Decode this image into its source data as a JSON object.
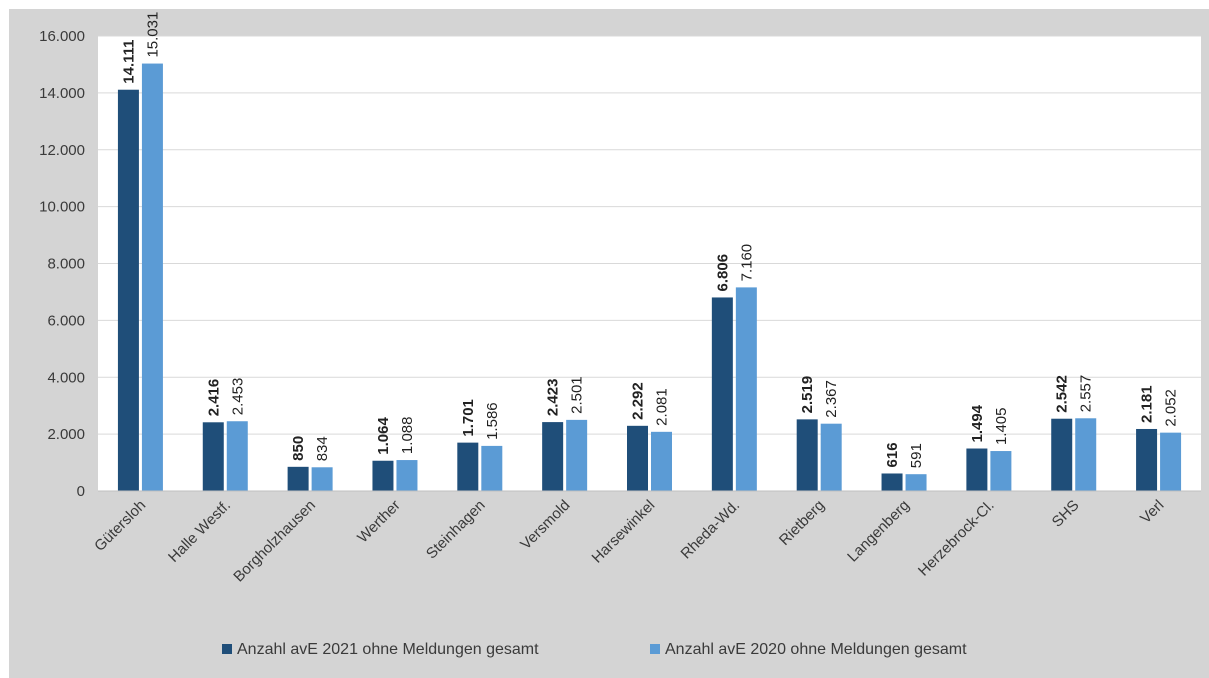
{
  "chart_data": {
    "type": "bar",
    "categories": [
      "Gütersloh",
      "Halle Westf.",
      "Borgholzhausen",
      "Werther",
      "Steinhagen",
      "Versmold",
      "Harsewinkel",
      "Rheda-Wd.",
      "Rietberg",
      "Langenberg",
      "Herzebrock-Cl.",
      "SHS",
      "Verl"
    ],
    "series": [
      {
        "name": "Anzahl avE 2021 ohne Meldungen gesamt",
        "values": [
          14111,
          2416,
          850,
          1064,
          1701,
          2423,
          2292,
          6806,
          2519,
          616,
          1494,
          2542,
          2181
        ],
        "labels": [
          "14.111",
          "2.416",
          "850",
          "1.064",
          "1.701",
          "2.423",
          "2.292",
          "6.806",
          "2.519",
          "616",
          "1.494",
          "2.542",
          "2.181"
        ],
        "color": "#1f4e79"
      },
      {
        "name": "Anzahl avE 2020 ohne Meldungen gesamt",
        "values": [
          15031,
          2453,
          834,
          1088,
          1586,
          2501,
          2081,
          7160,
          2367,
          591,
          1405,
          2557,
          2052
        ],
        "labels": [
          "15.031",
          "2.453",
          "834",
          "1.088",
          "1.586",
          "2.501",
          "2.081",
          "7.160",
          "2.367",
          "591",
          "1.405",
          "2.557",
          "2.052"
        ],
        "color": "#5b9bd5"
      }
    ],
    "ylim": [
      0,
      16000
    ],
    "yticks": [
      0,
      2000,
      4000,
      6000,
      8000,
      10000,
      12000,
      14000,
      16000
    ],
    "ytick_labels": [
      "0",
      "2.000",
      "4.000",
      "6.000",
      "8.000",
      "10.000",
      "12.000",
      "14.000",
      "16.000"
    ],
    "grid": true,
    "legend_position": "bottom"
  }
}
